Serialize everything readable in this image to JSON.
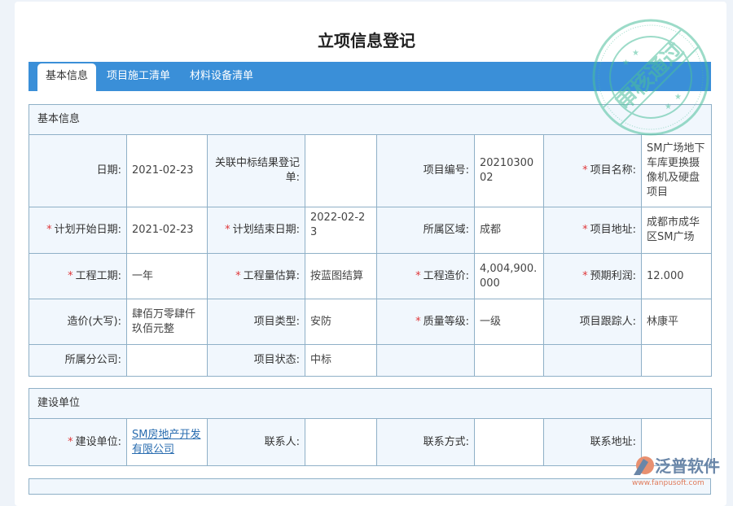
{
  "page": {
    "title": "立项信息登记"
  },
  "tabs": [
    {
      "label": "基本信息",
      "active": true
    },
    {
      "label": "项目施工清单"
    },
    {
      "label": "材料设备清单"
    }
  ],
  "basic": {
    "section_title": "基本信息",
    "rows": [
      [
        {
          "label": "日期:",
          "value": "2021-02-23"
        },
        {
          "label": "关联中标结果登记单:",
          "value": ""
        },
        {
          "label": "项目编号:",
          "value": "2021030002"
        },
        {
          "label": "项目名称:",
          "required": true,
          "value": "SM广场地下车库更换摄像机及硬盘项目"
        }
      ],
      [
        {
          "label": "计划开始日期:",
          "required": true,
          "value": "2021-02-23"
        },
        {
          "label": "计划结束日期:",
          "required": true,
          "value": "2022-02-23"
        },
        {
          "label": "所属区域:",
          "value": "成都"
        },
        {
          "label": "项目地址:",
          "required": true,
          "value": "成都市成华区SM广场"
        }
      ],
      [
        {
          "label": "工程工期:",
          "required": true,
          "value": "一年"
        },
        {
          "label": "工程量估算:",
          "required": true,
          "value": "按蓝图结算"
        },
        {
          "label": "工程造价:",
          "required": true,
          "value": "4,004,900.000"
        },
        {
          "label": "预期利润:",
          "required": true,
          "value": "12.000"
        }
      ],
      [
        {
          "label": "造价(大写):",
          "value": "肆佰万零肆仟玖佰元整"
        },
        {
          "label": "项目类型:",
          "value": "安防"
        },
        {
          "label": "质量等级:",
          "required": true,
          "value": "一级"
        },
        {
          "label": "项目跟踪人:",
          "value": "林康平"
        }
      ],
      [
        {
          "label": "所属分公司:",
          "value": ""
        },
        {
          "label": "项目状态:",
          "value": "中标"
        },
        {
          "label": "",
          "value": ""
        },
        {
          "label": "",
          "value": ""
        }
      ]
    ]
  },
  "builder": {
    "section_title": "建设单位",
    "rows": [
      [
        {
          "label": "建设单位:",
          "required": true,
          "value": "SM房地产开发有限公司",
          "link": true
        },
        {
          "label": "联系人:",
          "value": ""
        },
        {
          "label": "联系方式:",
          "value": ""
        },
        {
          "label": "联系地址:",
          "value": ""
        }
      ]
    ]
  },
  "stamp": {
    "text": "审核通过",
    "color": "#4cbf9c"
  },
  "logo": {
    "name": "泛普软件",
    "url": "www.fanpusoft.com"
  },
  "colors": {
    "accent": "#3a8fd8",
    "required": "#e0373a",
    "border": "#8fb0c7"
  }
}
